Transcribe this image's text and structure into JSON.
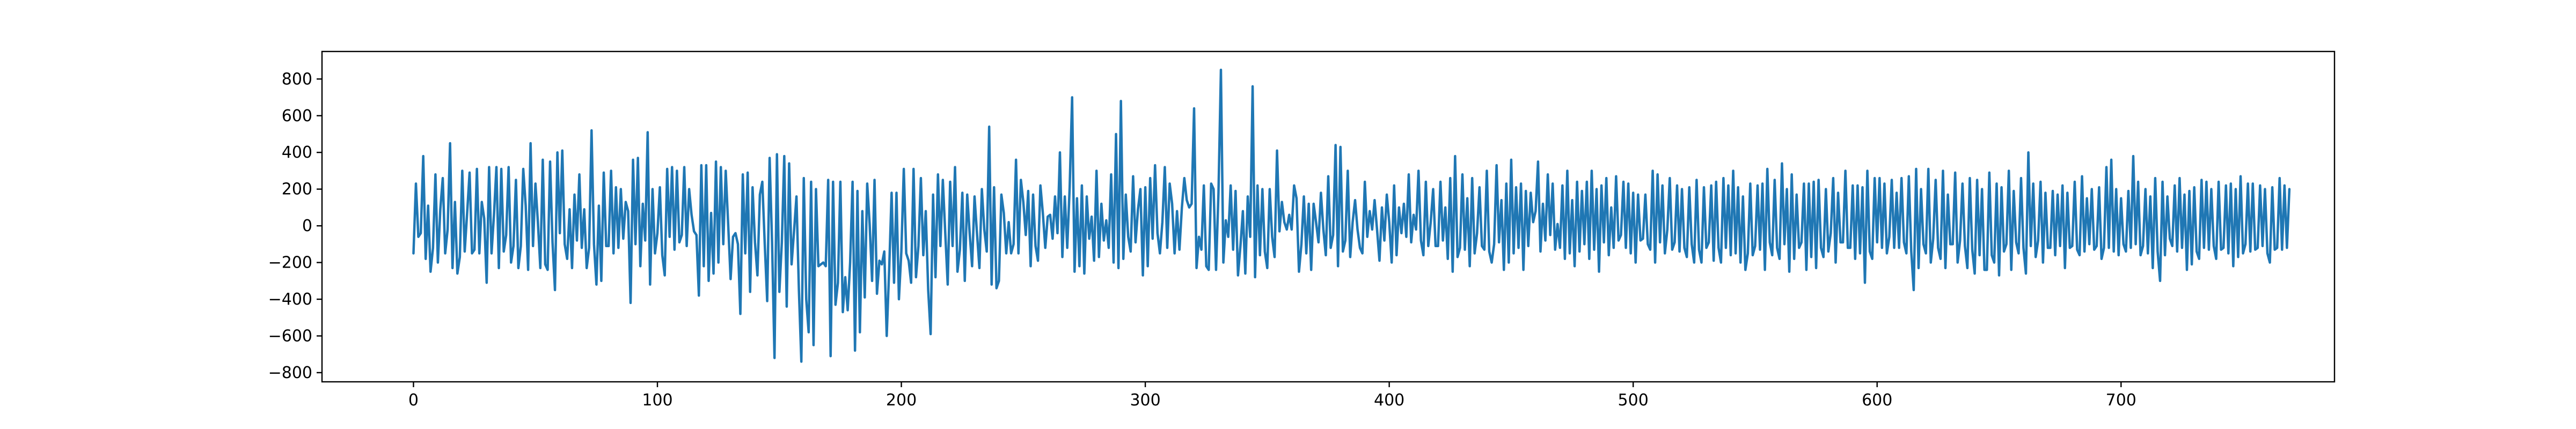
{
  "chart_data": {
    "type": "line",
    "title": "",
    "xlabel": "",
    "ylabel": "",
    "xlim": [
      -37.5,
      787.5
    ],
    "ylim": [
      -850,
      950
    ],
    "grid": false,
    "legend": "none",
    "x_ticks": [
      0,
      100,
      200,
      300,
      400,
      500,
      600,
      700
    ],
    "x_tick_labels": [
      "0",
      "100",
      "200",
      "300",
      "400",
      "500",
      "600",
      "700"
    ],
    "y_ticks": [
      -800,
      -600,
      -400,
      -200,
      0,
      200,
      400,
      600,
      800
    ],
    "y_tick_labels": [
      "−800",
      "−600",
      "−400",
      "−200",
      "0",
      "200",
      "400",
      "600",
      "800"
    ],
    "series": [
      {
        "color": "#1f77b4",
        "x_start": 0,
        "x_step": 1,
        "values": [
          -150,
          230,
          -60,
          -40,
          380,
          -180,
          110,
          -250,
          -120,
          280,
          -200,
          90,
          260,
          -150,
          -20,
          450,
          -230,
          130,
          -260,
          -170,
          300,
          -140,
          70,
          290,
          -150,
          -130,
          310,
          -150,
          130,
          40,
          -310,
          320,
          -150,
          60,
          320,
          -230,
          310,
          -140,
          -50,
          320,
          -200,
          -110,
          250,
          -230,
          -110,
          310,
          110,
          -240,
          450,
          -110,
          230,
          20,
          -230,
          360,
          -210,
          -240,
          350,
          -90,
          -350,
          400,
          -40,
          410,
          -100,
          -180,
          90,
          -230,
          170,
          -80,
          280,
          -120,
          90,
          -230,
          -120,
          520,
          -100,
          -320,
          110,
          -300,
          290,
          -110,
          -110,
          300,
          -150,
          210,
          -120,
          200,
          -70,
          130,
          80,
          -420,
          360,
          -100,
          370,
          -220,
          120,
          -80,
          510,
          -320,
          200,
          -150,
          -40,
          210,
          -160,
          -270,
          310,
          -60,
          320,
          -130,
          300,
          -90,
          -50,
          320,
          -110,
          200,
          60,
          -30,
          -50,
          -380,
          330,
          -220,
          330,
          -300,
          70,
          -260,
          350,
          -200,
          320,
          -100,
          300,
          10,
          -290,
          -60,
          -40,
          -100,
          -480,
          280,
          -150,
          290,
          -360,
          210,
          -90,
          -270,
          170,
          240,
          -100,
          -410,
          370,
          -90,
          -720,
          390,
          -360,
          -90,
          380,
          -440,
          340,
          -210,
          -30,
          160,
          -350,
          -740,
          260,
          -400,
          -580,
          240,
          -650,
          200,
          -220,
          -210,
          -200,
          -220,
          250,
          -710,
          240,
          -430,
          -310,
          240,
          -470,
          -280,
          -460,
          -200,
          240,
          -680,
          190,
          -580,
          80,
          -390,
          230,
          10,
          -300,
          250,
          -370,
          -190,
          -210,
          -140,
          -600,
          -240,
          180,
          -310,
          180,
          -400,
          -140,
          310,
          -150,
          -190,
          -310,
          310,
          -280,
          -110,
          260,
          -160,
          80,
          -350,
          -590,
          170,
          -280,
          280,
          -110,
          250,
          -40,
          -320,
          240,
          -110,
          320,
          -250,
          -130,
          180,
          -300,
          170,
          -40,
          -220,
          160,
          -40,
          -230,
          200,
          -20,
          -140,
          540,
          -320,
          210,
          -340,
          -300,
          170,
          70,
          -150,
          20,
          -150,
          -100,
          360,
          -150,
          250,
          130,
          -50,
          190,
          -220,
          170,
          -110,
          -190,
          220,
          70,
          -120,
          50,
          60,
          -70,
          160,
          -40,
          400,
          -170,
          160,
          -120,
          210,
          700,
          -250,
          150,
          -220,
          220,
          -260,
          160,
          -70,
          50,
          -190,
          300,
          -170,
          120,
          -80,
          30,
          -120,
          280,
          -200,
          500,
          -230,
          680,
          -180,
          170,
          -60,
          -140,
          270,
          -90,
          90,
          200,
          -270,
          210,
          -220,
          260,
          -70,
          330,
          -40,
          -150,
          20,
          320,
          -120,
          230,
          120,
          -150,
          80,
          -130,
          100,
          260,
          140,
          100,
          120,
          640,
          -230,
          -60,
          -130,
          220,
          -220,
          -240,
          230,
          200,
          -240,
          180,
          850,
          -200,
          30,
          -60,
          220,
          -130,
          190,
          -270,
          -110,
          80,
          -260,
          160,
          -60,
          760,
          -280,
          220,
          -160,
          200,
          -140,
          -230,
          200,
          -60,
          -170,
          410,
          -30,
          130,
          20,
          -20,
          60,
          -20,
          220,
          150,
          -250,
          -100,
          160,
          -150,
          120,
          -240,
          120,
          20,
          -90,
          180,
          -20,
          -160,
          270,
          -120,
          -50,
          440,
          -220,
          430,
          -140,
          -80,
          300,
          -170,
          20,
          140,
          -20,
          -120,
          -150,
          240,
          -60,
          80,
          -20,
          140,
          -20,
          -190,
          100,
          -80,
          170,
          20,
          -200,
          220,
          -160,
          100,
          -40,
          120,
          -60,
          280,
          -90,
          60,
          -20,
          300,
          -80,
          -160,
          240,
          -110,
          20,
          200,
          -110,
          -110,
          240,
          -80,
          100,
          -180,
          260,
          -250,
          380,
          -170,
          -120,
          280,
          -130,
          150,
          -220,
          260,
          -150,
          -40,
          210,
          -110,
          -130,
          300,
          -140,
          -200,
          -100,
          330,
          -90,
          140,
          -240,
          230,
          -200,
          360,
          -150,
          210,
          -120,
          230,
          -240,
          190,
          -110,
          180,
          20,
          80,
          350,
          -140,
          120,
          -80,
          280,
          -50,
          230,
          -130,
          10,
          -120,
          220,
          -180,
          300,
          -150,
          140,
          -220,
          240,
          -140,
          190,
          -100,
          240,
          -180,
          300,
          -130,
          200,
          -250,
          220,
          -90,
          260,
          -160,
          100,
          -120,
          270,
          -80,
          -50,
          240,
          -120,
          230,
          -150,
          180,
          -200,
          170,
          -80,
          -70,
          170,
          -100,
          -130,
          300,
          -200,
          280,
          -90,
          220,
          -150,
          -20,
          260,
          -130,
          -90,
          220,
          -140,
          200,
          -120,
          -170,
          210,
          -100,
          -200,
          250,
          -130,
          -200,
          210,
          -120,
          -90,
          220,
          -190,
          240,
          -120,
          -200,
          260,
          -120,
          220,
          -160,
          300,
          -150,
          210,
          -200,
          160,
          -240,
          -150,
          230,
          -160,
          -110,
          220,
          -130,
          230,
          -240,
          310,
          -90,
          -160,
          250,
          -120,
          -180,
          340,
          -100,
          200,
          -250,
          280,
          -180,
          170,
          -120,
          -90,
          230,
          -240,
          230,
          -170,
          240,
          -230,
          250,
          -120,
          -170,
          200,
          -140,
          -40,
          260,
          -200,
          180,
          -90,
          -90,
          300,
          -120,
          -120,
          220,
          -180,
          220,
          -150,
          210,
          -310,
          300,
          -140,
          -180,
          260,
          -90,
          260,
          -120,
          230,
          -150,
          -60,
          250,
          -120,
          180,
          -120,
          260,
          -90,
          -150,
          270,
          -140,
          -350,
          310,
          -230,
          200,
          -100,
          -150,
          310,
          -200,
          -70,
          250,
          -120,
          -180,
          300,
          -230,
          170,
          -100,
          -100,
          290,
          -200,
          -80,
          230,
          -110,
          -230,
          260,
          -130,
          -260,
          250,
          -160,
          200,
          -240,
          -240,
          290,
          -160,
          -200,
          230,
          -270,
          210,
          -140,
          -100,
          300,
          -240,
          190,
          -90,
          -150,
          260,
          -120,
          -260,
          400,
          -110,
          230,
          -170,
          -80,
          240,
          -200,
          180,
          -120,
          -120,
          190,
          -160,
          170,
          -110,
          220,
          -230,
          180,
          -120,
          -110,
          240,
          -130,
          -160,
          270,
          -140,
          150,
          -100,
          200,
          -130,
          -110,
          210,
          -180,
          -120,
          320,
          -120,
          360,
          -140,
          200,
          -160,
          150,
          -100,
          -140,
          190,
          -120,
          380,
          -100,
          240,
          -160,
          -110,
          200,
          -150,
          160,
          -230,
          260,
          -140,
          -300,
          240,
          -160,
          160,
          -70,
          -110,
          220,
          -140,
          260,
          -120,
          170,
          -240,
          190,
          -210,
          210,
          -140,
          -180,
          250,
          -120,
          240,
          -130,
          200,
          -110,
          -180,
          240,
          -130,
          -120,
          220,
          -150,
          230,
          -220,
          200,
          -170,
          270,
          -150,
          -100,
          230,
          -140,
          230,
          -130,
          -120,
          220,
          -110,
          200,
          -150,
          -200,
          210,
          -130,
          -120,
          260,
          -130,
          220,
          -120,
          200
        ]
      }
    ]
  }
}
